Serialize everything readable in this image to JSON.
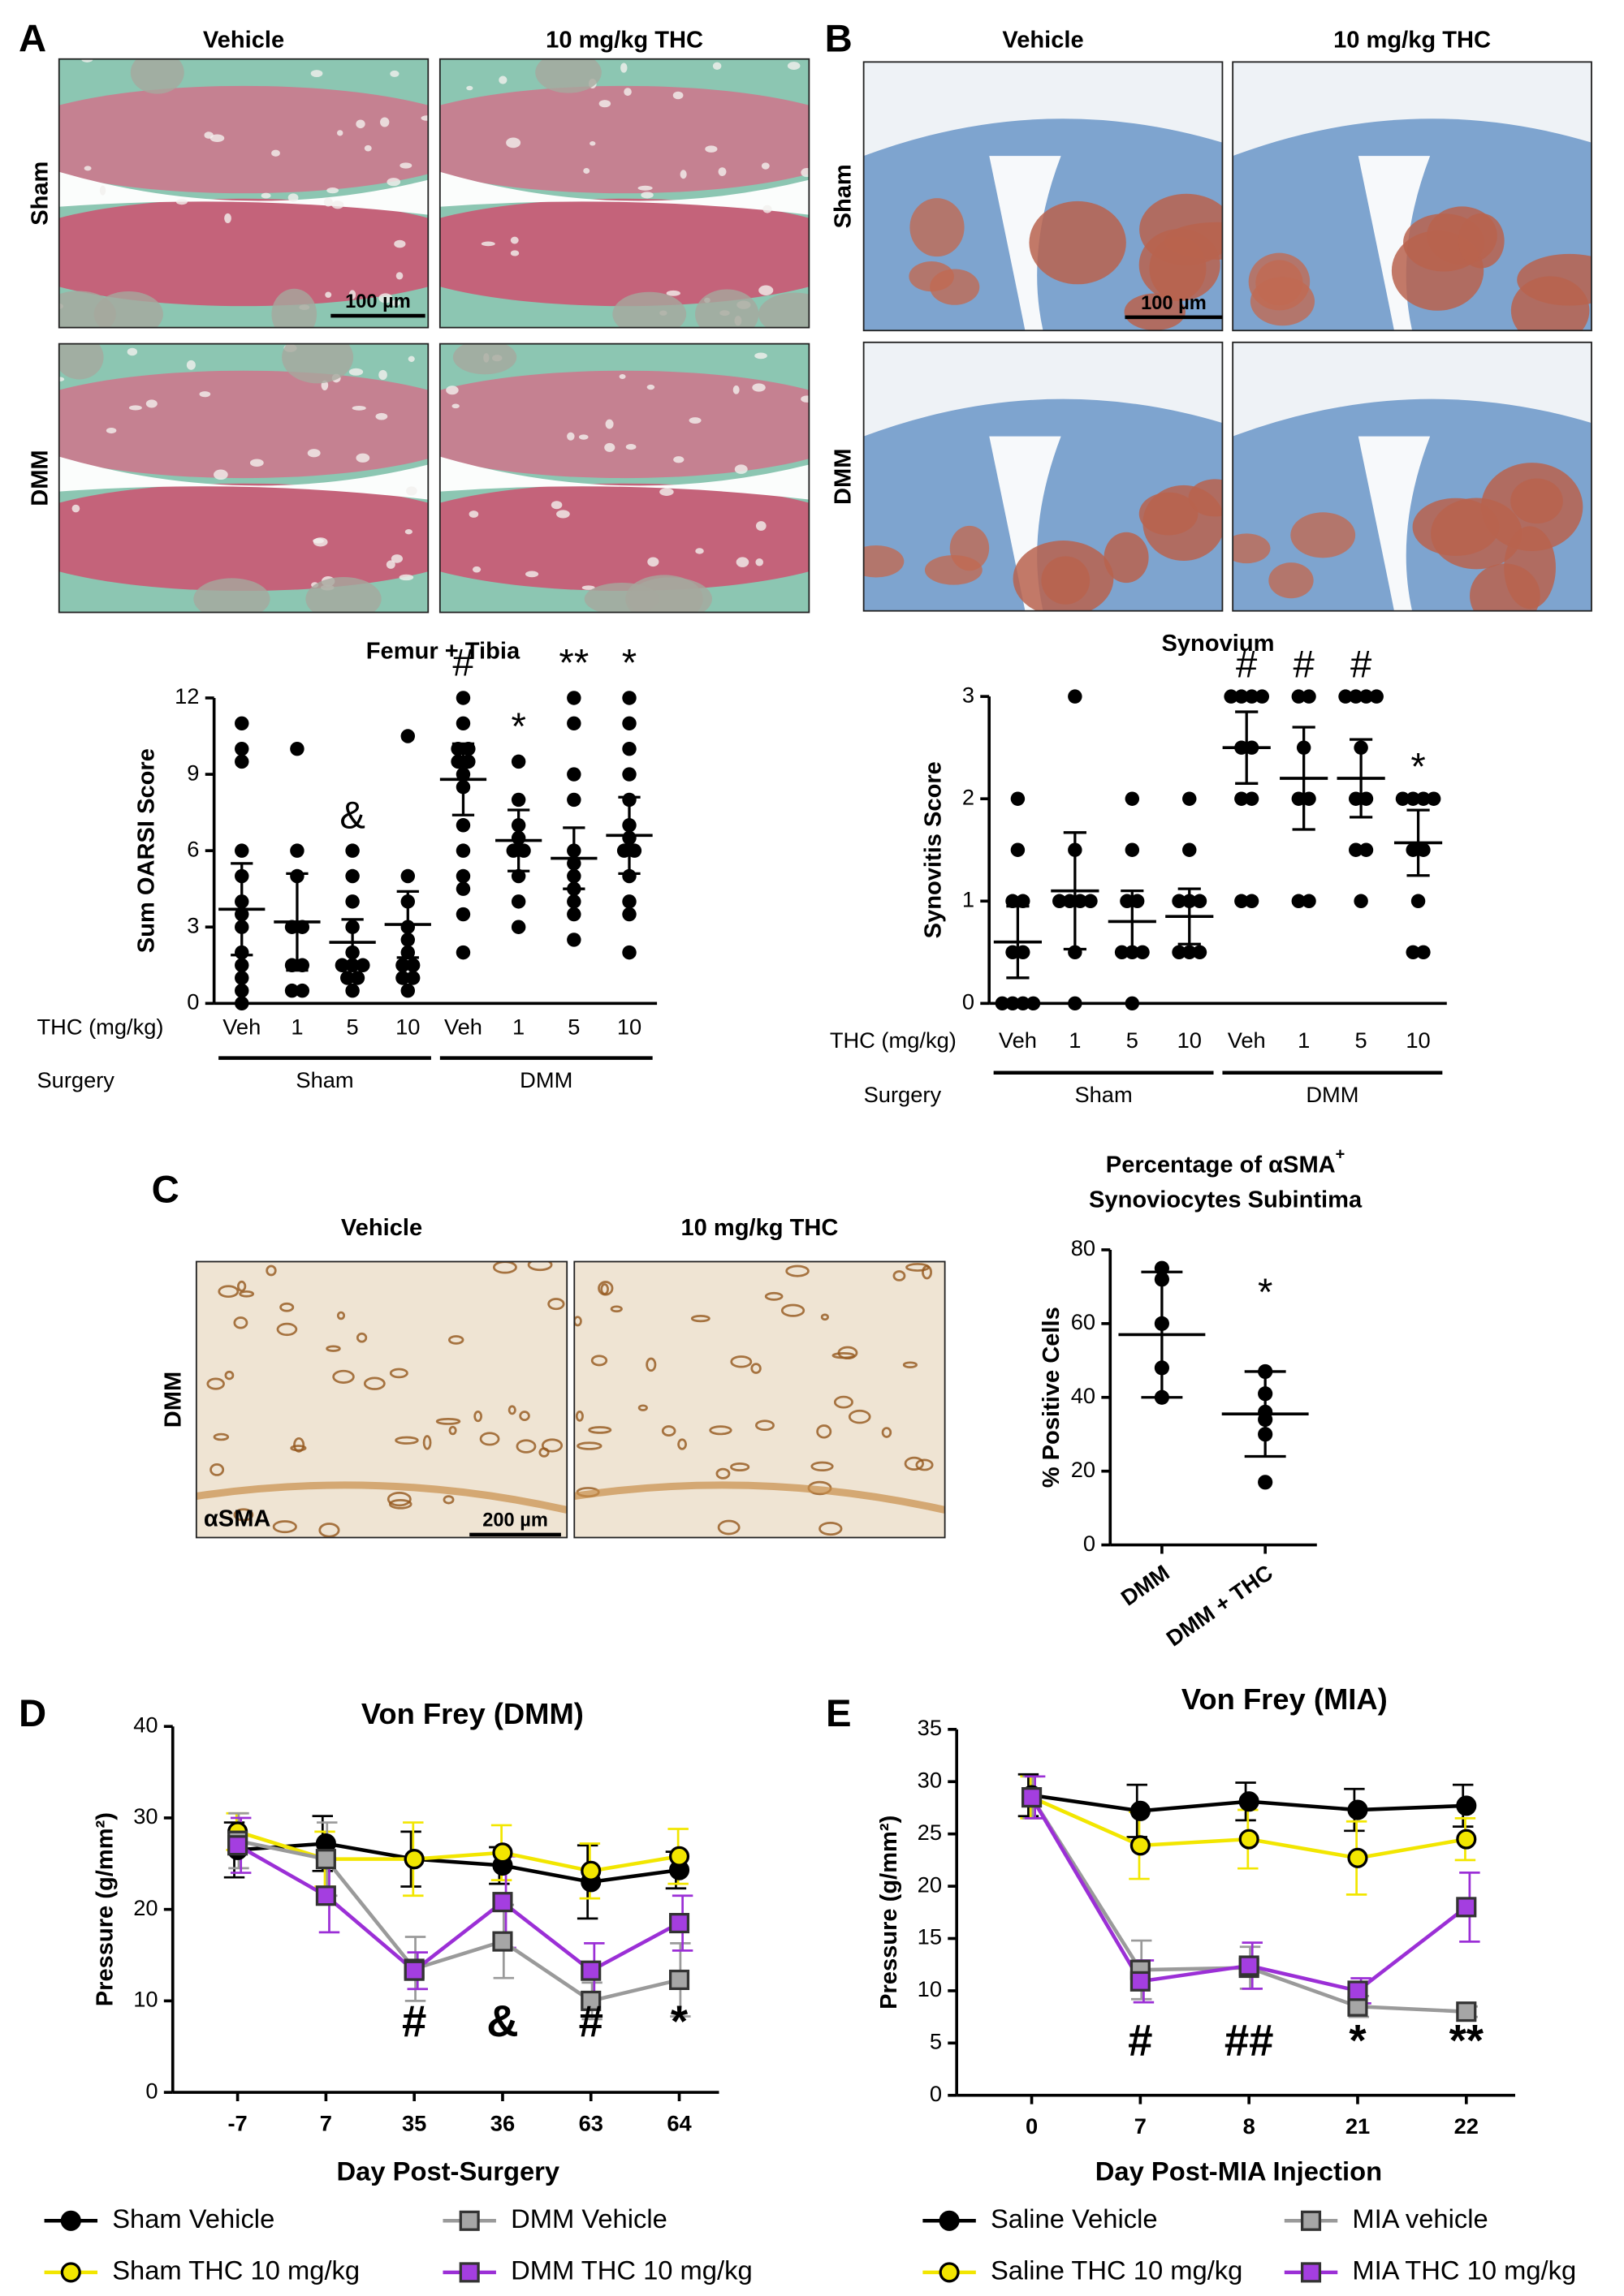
{
  "micrographs": [
    {
      "panel": "A",
      "columns": [
        "Vehicle",
        "10 mg/kg THC"
      ],
      "rows": [
        "Sham",
        "DMM"
      ],
      "scale_bar": "100 µm"
    },
    {
      "panel": "B",
      "columns": [
        "Vehicle",
        "10 mg/kg THC"
      ],
      "rows": [
        "Sham",
        "DMM"
      ],
      "scale_bar": "100 µm"
    },
    {
      "panel": "C",
      "columns": [
        "Vehicle",
        "10 mg/kg THC"
      ],
      "rows": [
        "DMM"
      ],
      "stain": "αSMA",
      "scale_bar": "200 µm"
    }
  ],
  "chart_data": [
    {
      "type": "dot",
      "title": "Femur + Tibia",
      "ylabel": "Sum OARSI Score",
      "x_row_label": "THC (mg/kg)",
      "group_row_label": "Surgery",
      "groups": [
        "Sham",
        "DMM"
      ],
      "categories": [
        "Veh",
        "1",
        "5",
        "10",
        "Veh",
        "1",
        "5",
        "10"
      ],
      "values": [
        3.7,
        3.2,
        2.4,
        3.1,
        8.8,
        6.4,
        5.7,
        6.6
      ],
      "errors": [
        1.8,
        1.9,
        0.9,
        1.3,
        1.4,
        1.2,
        1.2,
        1.5
      ],
      "points": [
        [
          11,
          10,
          9.5,
          6,
          5,
          4,
          3.5,
          3,
          2,
          1.5,
          1,
          0.5,
          0
        ],
        [
          10,
          6,
          5,
          3,
          3,
          1.5,
          1.5,
          0.5,
          0.5
        ],
        [
          6,
          5,
          4,
          3,
          2,
          1.5,
          1.5,
          1.5,
          1,
          1,
          0.5
        ],
        [
          10.5,
          5,
          4,
          3,
          2.5,
          2,
          1.5,
          1.5,
          1,
          1,
          0.5
        ],
        [
          12,
          11,
          10,
          10,
          9.5,
          9.5,
          9,
          8.5,
          7,
          6,
          5,
          4.5,
          3.5,
          2
        ],
        [
          9.5,
          8,
          7,
          6.5,
          6,
          6,
          5,
          4,
          3
        ],
        [
          12,
          11,
          9,
          8,
          6,
          5.5,
          5,
          4.5,
          4,
          3.5,
          2.5
        ],
        [
          12,
          11,
          10,
          9,
          8,
          7,
          6.5,
          6,
          6,
          5,
          4,
          3.5,
          2
        ]
      ],
      "annotations": [
        null,
        null,
        "&",
        null,
        "#",
        "*",
        "**",
        "*"
      ],
      "ylim": [
        0,
        12
      ],
      "yticks": [
        0,
        3,
        6,
        9,
        12
      ]
    },
    {
      "type": "dot",
      "title": "Synovium",
      "ylabel": "Synovitis Score",
      "x_row_label": "THC (mg/kg)",
      "group_row_label": "Surgery",
      "groups": [
        "Sham",
        "DMM"
      ],
      "categories": [
        "Veh",
        "1",
        "5",
        "10",
        "Veh",
        "1",
        "5",
        "10"
      ],
      "values": [
        0.6,
        1.1,
        0.8,
        0.85,
        2.5,
        2.2,
        2.2,
        1.57
      ],
      "errors": [
        0.35,
        0.57,
        0.3,
        0.27,
        0.35,
        0.5,
        0.38,
        0.32
      ],
      "points": [
        [
          2,
          1.5,
          1,
          1,
          0.5,
          0.5,
          0,
          0,
          0,
          0
        ],
        [
          3,
          1.5,
          1,
          1,
          1,
          1,
          0.5,
          0
        ],
        [
          2,
          1.5,
          1,
          1,
          0.5,
          0.5,
          0.5,
          0
        ],
        [
          2,
          1.5,
          1,
          1,
          1,
          0.5,
          0.5,
          0.5
        ],
        [
          3,
          3,
          3,
          3,
          2.5,
          2.5,
          2,
          2,
          1,
          1
        ],
        [
          3,
          3,
          2.5,
          2,
          2,
          1,
          1
        ],
        [
          3,
          3,
          3,
          3,
          2.5,
          2,
          2,
          1.5,
          1.5,
          1
        ],
        [
          2,
          2,
          2,
          2,
          1.5,
          1.5,
          1,
          0.5,
          0.5
        ]
      ],
      "annotations": [
        null,
        null,
        null,
        null,
        "#",
        "#",
        "#",
        "*"
      ],
      "ylim": [
        0,
        3
      ],
      "yticks": [
        0,
        1,
        2,
        3
      ]
    },
    {
      "type": "dot",
      "panel": "C",
      "title": [
        "Percentage of αSMA",
        "Synoviocytes Subintima"
      ],
      "title_superscript": "+",
      "ylabel": "% Positive Cells",
      "categories": [
        "DMM",
        "DMM + THC"
      ],
      "values": [
        57,
        35.5
      ],
      "errors": [
        17,
        11.5
      ],
      "points": [
        [
          75,
          72,
          60,
          48,
          40
        ],
        [
          47,
          41,
          36,
          34,
          30,
          17
        ]
      ],
      "annotations": [
        null,
        "*"
      ],
      "ylim": [
        0,
        80
      ],
      "yticks": [
        0,
        20,
        40,
        60,
        80
      ]
    },
    {
      "type": "line",
      "panel": "D",
      "title": "Von Frey (DMM)",
      "xlabel": "Day Post-Surgery",
      "ylabel": "Pressure (g/mm²)",
      "categories": [
        "-7",
        "7",
        "35",
        "36",
        "63",
        "64"
      ],
      "series": [
        {
          "name": "Sham Vehicle",
          "color": "#000000",
          "marker": "circle",
          "marker_fill": "#000000",
          "values": [
            26.5,
            27.2,
            25.5,
            24.8,
            23,
            24.3
          ],
          "errors": [
            3,
            3,
            3,
            2,
            4,
            2
          ]
        },
        {
          "name": "Sham THC 10 mg/kg",
          "color": "#f2e600",
          "marker": "circle",
          "marker_fill": "#f2e600",
          "values": [
            28.5,
            25.5,
            25.5,
            26.2,
            24.2,
            25.8
          ],
          "errors": [
            2,
            3,
            4,
            3,
            3,
            3
          ]
        },
        {
          "name": "DMM Vehicle",
          "color": "#9a9a9a",
          "marker": "square",
          "marker_fill": "#a6a6a6",
          "values": [
            27.5,
            25.5,
            13.5,
            16.5,
            10,
            12.3
          ],
          "errors": [
            3,
            4,
            3.5,
            4,
            2,
            4
          ]
        },
        {
          "name": "DMM THC 10 mg/kg",
          "color": "#9b2fd6",
          "marker": "square",
          "marker_fill": "#a43ee0",
          "values": [
            27,
            21.5,
            13.3,
            20.8,
            13.3,
            18.5
          ],
          "errors": [
            3,
            4,
            2,
            5,
            3,
            3
          ]
        }
      ],
      "annotations": [
        null,
        null,
        "#",
        "&",
        "#",
        "*"
      ],
      "legend": "bottom",
      "ylim": [
        0,
        40
      ],
      "yticks": [
        0,
        10,
        20,
        30,
        40
      ]
    },
    {
      "type": "line",
      "panel": "E",
      "title": "Von Frey (MIA)",
      "xlabel": "Day Post-MIA Injection",
      "ylabel": "Pressure (g/mm²)",
      "categories": [
        "0",
        "7",
        "8",
        "21",
        "22"
      ],
      "series": [
        {
          "name": "Saline Vehicle",
          "color": "#000000",
          "marker": "circle",
          "marker_fill": "#000000",
          "values": [
            28.7,
            27.2,
            28.1,
            27.3,
            27.7
          ],
          "errors": [
            2,
            2.5,
            1.8,
            2,
            2
          ]
        },
        {
          "name": "Saline THC 10 mg/kg",
          "color": "#f2e600",
          "marker": "circle",
          "marker_fill": "#f2e600",
          "values": [
            28.5,
            23.9,
            24.5,
            22.7,
            24.5
          ],
          "errors": [
            2,
            3.2,
            2.8,
            3.5,
            2
          ]
        },
        {
          "name": "MIA vehicle",
          "color": "#9a9a9a",
          "marker": "square",
          "marker_fill": "#a6a6a6",
          "values": [
            28.5,
            12,
            12.2,
            8.5,
            8
          ],
          "errors": [
            2,
            2.8,
            2,
            1,
            0.5
          ]
        },
        {
          "name": "MIA THC 10 mg/kg",
          "color": "#9b2fd6",
          "marker": "square",
          "marker_fill": "#a43ee0",
          "values": [
            28.5,
            10.9,
            12.4,
            10,
            18
          ],
          "errors": [
            2,
            2,
            2.2,
            1.2,
            3.3
          ]
        }
      ],
      "annotations": [
        null,
        "#",
        "##",
        "*",
        "**"
      ],
      "legend": "bottom",
      "ylim": [
        0,
        35
      ],
      "yticks": [
        0,
        5,
        10,
        15,
        20,
        25,
        30,
        35
      ]
    }
  ]
}
